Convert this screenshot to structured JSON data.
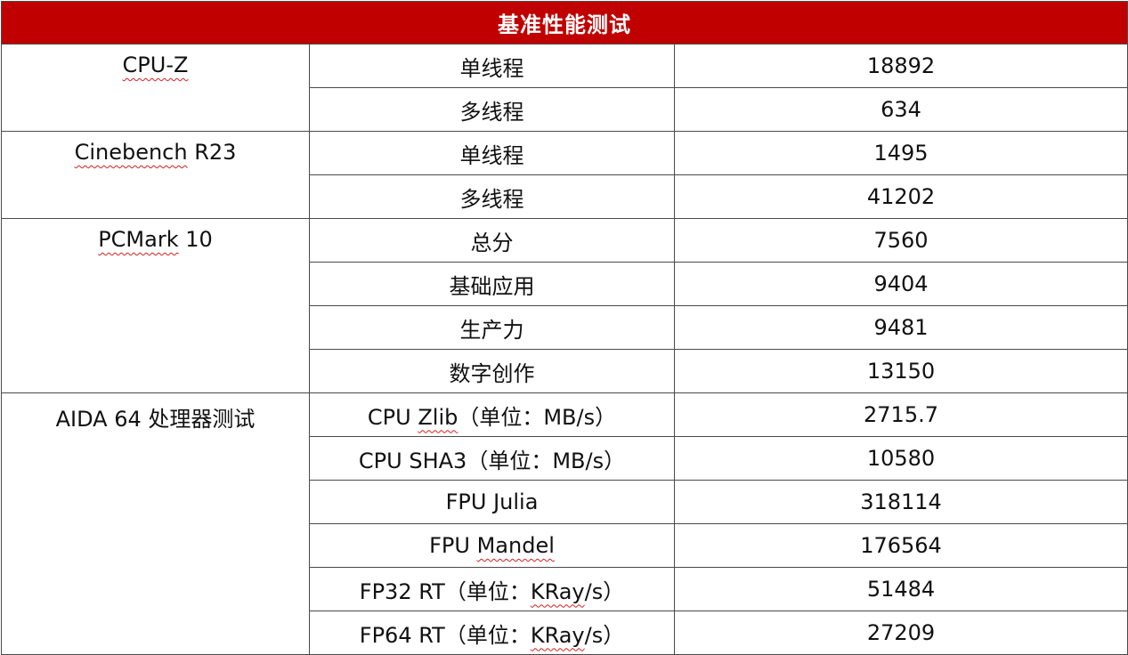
{
  "title": "基准性能测试",
  "groups": [
    {
      "tool": "CPU-Z",
      "rows": [
        {
          "item": "单线程",
          "score": "18892"
        },
        {
          "item": "多线程",
          "score": "634"
        }
      ]
    },
    {
      "tool": "Cinebench R23",
      "rows": [
        {
          "item": "单线程",
          "score": "1495"
        },
        {
          "item": "多线程",
          "score": "41202"
        }
      ]
    },
    {
      "tool": "PCMark 10",
      "rows": [
        {
          "item": "总分",
          "score": "7560"
        },
        {
          "item": "基础应用",
          "score": "9404"
        },
        {
          "item": "生产力",
          "score": "9481"
        },
        {
          "item": "数字创作",
          "score": "13150"
        }
      ]
    },
    {
      "tool": "AIDA 64 处理器测试",
      "rows": [
        {
          "item": "CPU Zlib（单位：MB/s）",
          "score": "2715.7"
        },
        {
          "item": "CPU SHA3（单位：MB/s）",
          "score": "10580"
        },
        {
          "item": "FPU Julia",
          "score": "318114"
        },
        {
          "item": "FPU Mandel",
          "score": "176564"
        },
        {
          "item": "FP32 RT（单位：KRay/s）",
          "score": "51484"
        },
        {
          "item": "FP64 RT（单位：KRay/s）",
          "score": "27209"
        }
      ]
    }
  ],
  "colors": {
    "header_bg": "#c00000",
    "header_text": "#ffffff",
    "border": "#4a4a4a",
    "spellcheck_underline": "#d42020"
  }
}
